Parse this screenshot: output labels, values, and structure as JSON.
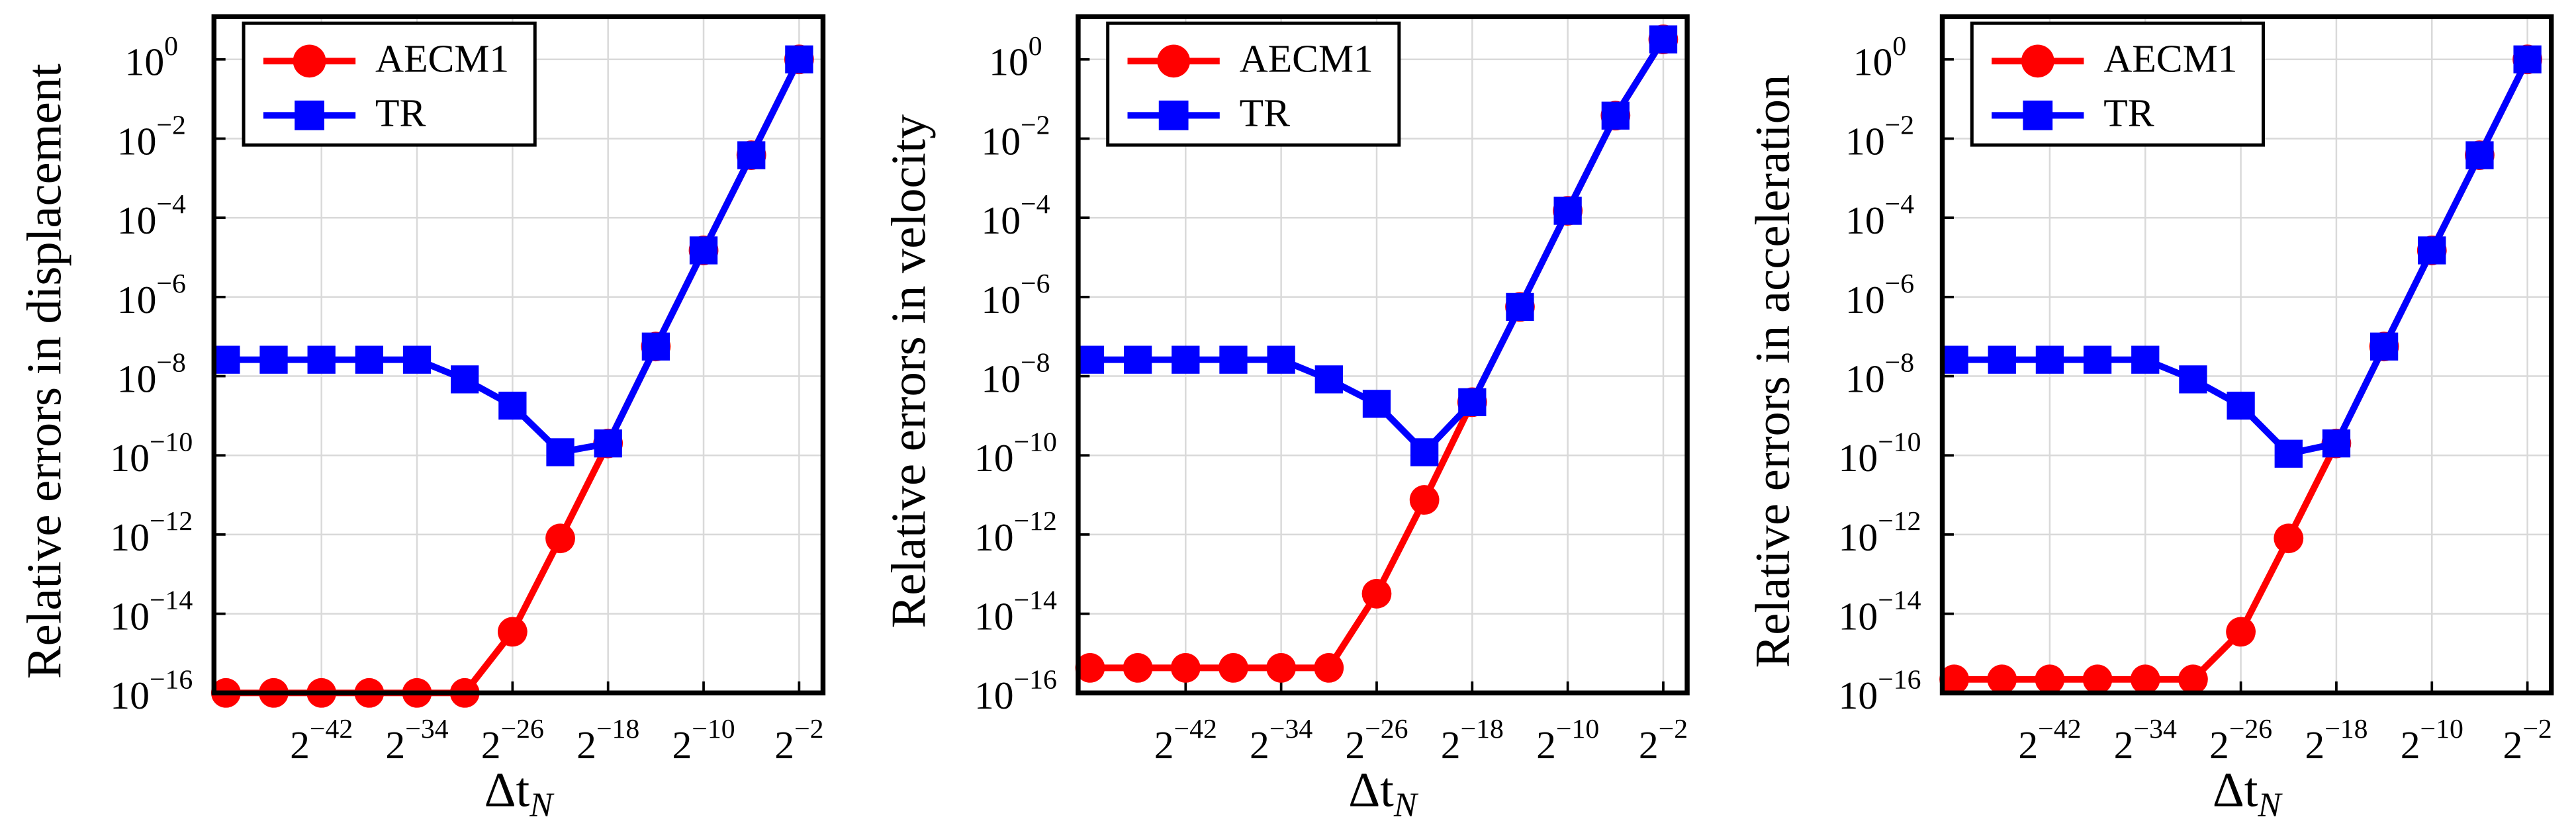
{
  "chart_data": [
    {
      "type": "line",
      "ylabel": "Relative errors in displacement",
      "xlabel": "Δt",
      "xlabel_sub": "N",
      "xscale": "log2",
      "yscale": "log",
      "grid": true,
      "legend": "upper left",
      "xlim": [
        4.440892098500626e-16,
        1
      ],
      "ylim": [
        1e-16,
        12
      ],
      "xticks": [
        {
          "value": 2.2737367544323206e-13,
          "label": "2",
          "sup": "−42"
        },
        {
          "value": 5.820766091346741e-11,
          "label": "2",
          "sup": "−34"
        },
        {
          "value": 1.4901161193847656e-08,
          "label": "2",
          "sup": "−26"
        },
        {
          "value": 3.814697265625e-06,
          "label": "2",
          "sup": "−18"
        },
        {
          "value": 0.0009765625,
          "label": "2",
          "sup": "−10"
        },
        {
          "value": 0.25,
          "label": "2",
          "sup": "−2"
        }
      ],
      "yticks": [
        {
          "value": 1,
          "label": "10",
          "sup": "0"
        },
        {
          "value": 0.01,
          "label": "10",
          "sup": "−2"
        },
        {
          "value": 0.0001,
          "label": "10",
          "sup": "−4"
        },
        {
          "value": 1e-06,
          "label": "10",
          "sup": "−6"
        },
        {
          "value": 1e-08,
          "label": "10",
          "sup": "−8"
        },
        {
          "value": 1e-10,
          "label": "10",
          "sup": "−10"
        },
        {
          "value": 1e-12,
          "label": "10",
          "sup": "−12"
        },
        {
          "value": 1e-14,
          "label": "10",
          "sup": "−14"
        },
        {
          "value": 1e-16,
          "label": "10",
          "sup": "−16"
        }
      ],
      "x": [
        8.881784197001252e-16,
        1.4210854715202004e-14,
        2.2737367544323206e-13,
        3.637978807091713e-12,
        5.820766091346741e-11,
        9.313225746154785e-10,
        1.4901161193847656e-08,
        2.384185791015625e-07,
        3.814697265625e-06,
        6.103515625e-05,
        0.0009765625,
        0.015625,
        0.25
      ],
      "series": [
        {
          "name": "AECM1",
          "color": "#ff0000",
          "marker": "circle",
          "values": [
            1e-16,
            1e-16,
            1e-16,
            1e-16,
            1e-16,
            1e-16,
            3.5e-15,
            8e-13,
            2e-10,
            5.6e-08,
            1.5e-05,
            0.0038,
            1
          ]
        },
        {
          "name": "TR",
          "color": "#0000ff",
          "marker": "square",
          "values": [
            2.6e-08,
            2.6e-08,
            2.6e-08,
            2.6e-08,
            2.6e-08,
            8.3e-09,
            1.8e-09,
            1.2e-10,
            2e-10,
            5.6e-08,
            1.5e-05,
            0.0038,
            1
          ]
        }
      ]
    },
    {
      "type": "line",
      "ylabel": "Relative errors in velocity",
      "xlabel": "Δt",
      "xlabel_sub": "N",
      "xscale": "log2",
      "yscale": "log",
      "grid": true,
      "legend": "upper left",
      "xlim": [
        4.440892098500626e-16,
        1
      ],
      "ylim": [
        1e-16,
        12
      ],
      "xticks": [
        {
          "value": 2.2737367544323206e-13,
          "label": "2",
          "sup": "−42"
        },
        {
          "value": 5.820766091346741e-11,
          "label": "2",
          "sup": "−34"
        },
        {
          "value": 1.4901161193847656e-08,
          "label": "2",
          "sup": "−26"
        },
        {
          "value": 3.814697265625e-06,
          "label": "2",
          "sup": "−18"
        },
        {
          "value": 0.0009765625,
          "label": "2",
          "sup": "−10"
        },
        {
          "value": 0.25,
          "label": "2",
          "sup": "−2"
        }
      ],
      "yticks": [
        {
          "value": 1,
          "label": "10",
          "sup": "0"
        },
        {
          "value": 0.01,
          "label": "10",
          "sup": "−2"
        },
        {
          "value": 0.0001,
          "label": "10",
          "sup": "−4"
        },
        {
          "value": 1e-06,
          "label": "10",
          "sup": "−6"
        },
        {
          "value": 1e-08,
          "label": "10",
          "sup": "−8"
        },
        {
          "value": 1e-10,
          "label": "10",
          "sup": "−10"
        },
        {
          "value": 1e-12,
          "label": "10",
          "sup": "−12"
        },
        {
          "value": 1e-14,
          "label": "10",
          "sup": "−14"
        },
        {
          "value": 1e-16,
          "label": "10",
          "sup": "−16"
        }
      ],
      "x": [
        8.881784197001252e-16,
        1.4210854715202004e-14,
        2.2737367544323206e-13,
        3.637978807091713e-12,
        5.820766091346741e-11,
        9.313225746154785e-10,
        1.4901161193847656e-08,
        2.384185791015625e-07,
        3.814697265625e-06,
        6.103515625e-05,
        0.0009765625,
        0.015625,
        0.25
      ],
      "series": [
        {
          "name": "AECM1",
          "color": "#ff0000",
          "marker": "circle",
          "values": [
            4.3e-16,
            4.3e-16,
            4.3e-16,
            4.3e-16,
            4.3e-16,
            4.3e-16,
            3.2e-14,
            7.5e-12,
            2.2e-09,
            5.6e-07,
            0.00015,
            0.038,
            3.2
          ]
        },
        {
          "name": "TR",
          "color": "#0000ff",
          "marker": "square",
          "values": [
            2.6e-08,
            2.6e-08,
            2.6e-08,
            2.6e-08,
            2.6e-08,
            8.3e-09,
            2e-09,
            1.2e-10,
            2.2e-09,
            5.6e-07,
            0.00015,
            0.038,
            3.2
          ]
        }
      ]
    },
    {
      "type": "line",
      "ylabel": "Relative errors in acceleration",
      "xlabel": "Δt",
      "xlabel_sub": "N",
      "xscale": "log2",
      "yscale": "log",
      "grid": true,
      "legend": "upper left",
      "xlim": [
        4.440892098500626e-16,
        1
      ],
      "ylim": [
        1e-16,
        12
      ],
      "xticks": [
        {
          "value": 2.2737367544323206e-13,
          "label": "2",
          "sup": "−42"
        },
        {
          "value": 5.820766091346741e-11,
          "label": "2",
          "sup": "−34"
        },
        {
          "value": 1.4901161193847656e-08,
          "label": "2",
          "sup": "−26"
        },
        {
          "value": 3.814697265625e-06,
          "label": "2",
          "sup": "−18"
        },
        {
          "value": 0.0009765625,
          "label": "2",
          "sup": "−10"
        },
        {
          "value": 0.25,
          "label": "2",
          "sup": "−2"
        }
      ],
      "yticks": [
        {
          "value": 1,
          "label": "10",
          "sup": "0"
        },
        {
          "value": 0.01,
          "label": "10",
          "sup": "−2"
        },
        {
          "value": 0.0001,
          "label": "10",
          "sup": "−4"
        },
        {
          "value": 1e-06,
          "label": "10",
          "sup": "−6"
        },
        {
          "value": 1e-08,
          "label": "10",
          "sup": "−8"
        },
        {
          "value": 1e-10,
          "label": "10",
          "sup": "−10"
        },
        {
          "value": 1e-12,
          "label": "10",
          "sup": "−12"
        },
        {
          "value": 1e-14,
          "label": "10",
          "sup": "−14"
        },
        {
          "value": 1e-16,
          "label": "10",
          "sup": "−16"
        }
      ],
      "x": [
        8.881784197001252e-16,
        1.4210854715202004e-14,
        2.2737367544323206e-13,
        3.637978807091713e-12,
        5.820766091346741e-11,
        9.313225746154785e-10,
        1.4901161193847656e-08,
        2.384185791015625e-07,
        3.814697265625e-06,
        6.103515625e-05,
        0.0009765625,
        0.015625,
        0.25
      ],
      "series": [
        {
          "name": "AECM1",
          "color": "#ff0000",
          "marker": "circle",
          "values": [
            2.2e-16,
            2.2e-16,
            2.2e-16,
            2.2e-16,
            2.2e-16,
            2.2e-16,
            3.5e-15,
            8e-13,
            2e-10,
            5.6e-08,
            1.5e-05,
            0.0038,
            1
          ]
        },
        {
          "name": "TR",
          "color": "#0000ff",
          "marker": "square",
          "values": [
            2.6e-08,
            2.6e-08,
            2.6e-08,
            2.6e-08,
            2.6e-08,
            8.3e-09,
            1.8e-09,
            1.1e-10,
            2e-10,
            5.6e-08,
            1.5e-05,
            0.0038,
            1
          ]
        }
      ]
    }
  ]
}
